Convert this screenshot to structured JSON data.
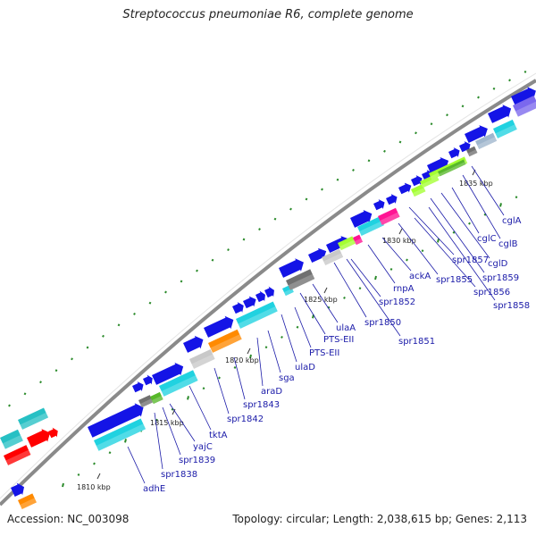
{
  "title": "Streptococcus pneumoniae R6, complete genome",
  "accession": "Accession: NC_003098",
  "summary": "Topology: circular; Length: 2,038,615 bp; Genes: 2,113",
  "ticks": [
    "1810 kbp",
    "1815 kbp",
    "1820 kbp",
    "1825 kbp",
    "1830 kbp",
    "1835 kbp"
  ],
  "genes": [
    "adhE",
    "spr1838",
    "spr1839",
    "yajC",
    "tktA",
    "spr1842",
    "spr1843",
    "araD",
    "sga",
    "ulaD",
    "PTS-EII",
    "PTS-EII",
    "ulaA",
    "spr1850",
    "spr1851",
    "spr1852",
    "rnpA",
    "ackA",
    "spr1855",
    "spr1856",
    "spr1857",
    "spr1858",
    "spr1859",
    "cglD",
    "cglC",
    "cglB",
    "cglA"
  ],
  "colors": {
    "cds": "#1414e6",
    "cyan": "#20d2e0",
    "teal": "#27c0c4",
    "orange": "#ff8a00",
    "grey": "#707070",
    "light_grey": "#c8c8c8",
    "lime": "#a5ff32",
    "green": "#57b82a",
    "magenta": "#ff1493",
    "red": "#ff0000",
    "slate": "#7b68ee",
    "steel": "#9fb6cd",
    "axis": "#8a8a8a",
    "gc": "#2a8a2a",
    "label": "#1a1aa8"
  }
}
